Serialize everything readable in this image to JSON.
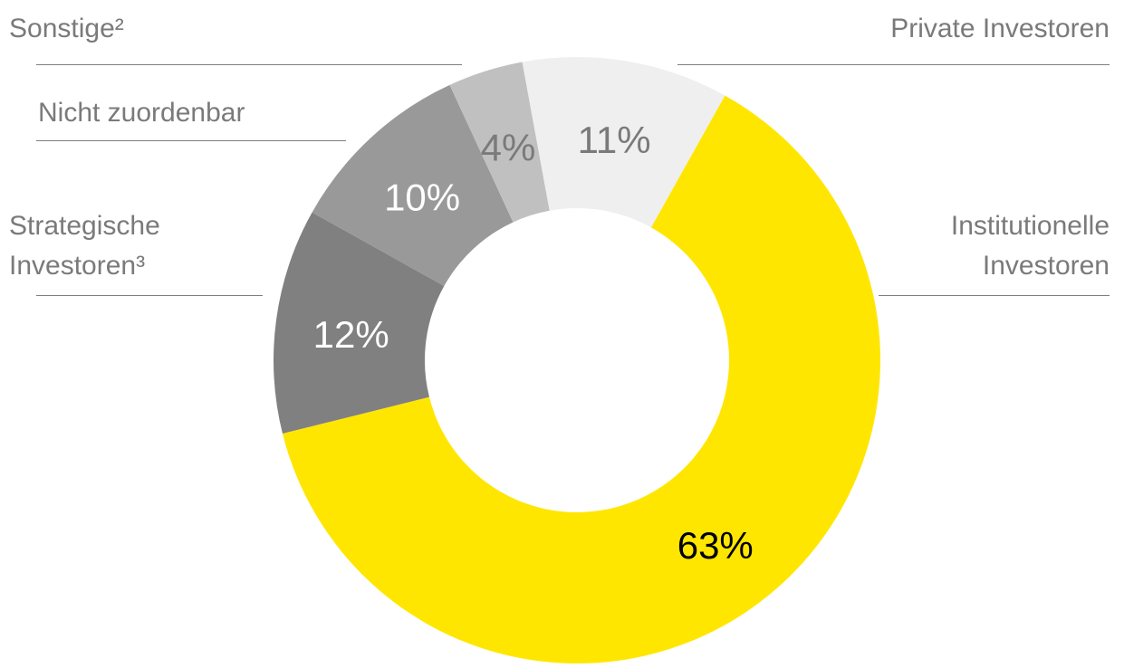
{
  "chart_data": {
    "type": "pie",
    "categories": [
      "Private Investoren",
      "Institutionelle Investoren",
      "Strategische Investoren³",
      "Nicht zuordenbar",
      "Sonstige²"
    ],
    "values": [
      11,
      63,
      12,
      10,
      4
    ],
    "value_labels": [
      "11%",
      "63%",
      "12%",
      "10%",
      "4%"
    ],
    "colors": [
      "#efefef",
      "#ffe600",
      "#808080",
      "#999999",
      "#c0c0c0"
    ],
    "donut": true
  }
}
